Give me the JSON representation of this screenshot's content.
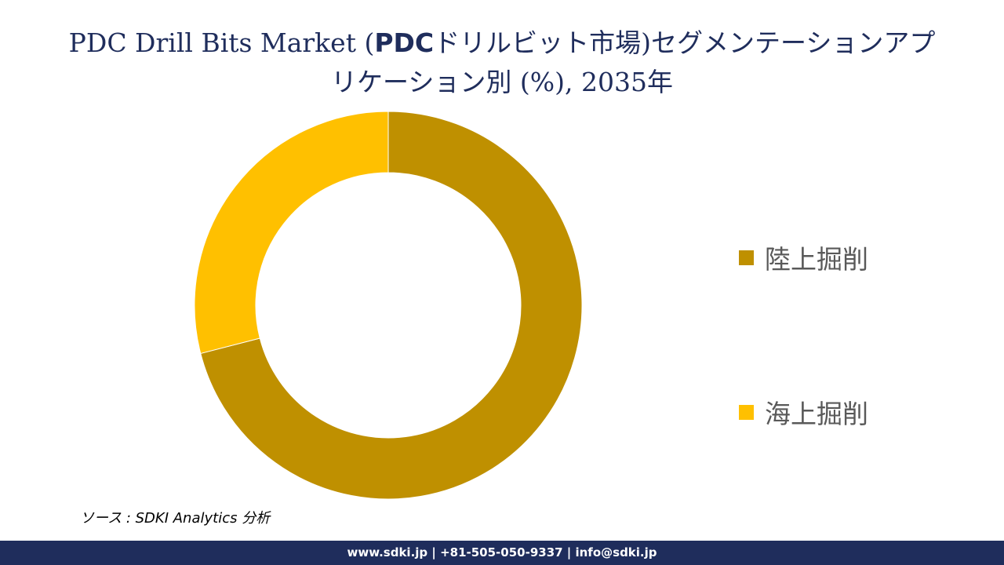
{
  "title": {
    "line1_prefix": "PDC Drill Bits Market (",
    "line1_bold": "PDC",
    "line1_suffix": "ドリルビット市場)セグメンテーションアプ",
    "line2": "リケーション別 (%), 2035年"
  },
  "chart_data": {
    "type": "pie",
    "donut": true,
    "title": "PDC Drill Bits Market (PDCドリルビット市場)セグメンテーションアプリケーション別 (%), 2035年",
    "categories": [
      "陸上掘削",
      "海上掘削"
    ],
    "values": [
      71,
      29
    ],
    "colors": [
      "#bf9000",
      "#ffc000"
    ],
    "start_angle_deg": 0,
    "direction": "clockwise",
    "legend": "right",
    "data_labels": false
  },
  "legend": {
    "items": [
      {
        "label": "陸上掘削",
        "color": "#bf9000"
      },
      {
        "label": "海上掘削",
        "color": "#ffc000"
      }
    ]
  },
  "source": "ソース : SDKI Analytics 分析",
  "footer": "www.sdki.jp | +81-505-050-9337 | info@sdki.jp",
  "colors": {
    "title": "#1f2d5c",
    "footer_bg": "#1f2d5c",
    "legend_text": "#595959",
    "background": "#ffffff"
  }
}
